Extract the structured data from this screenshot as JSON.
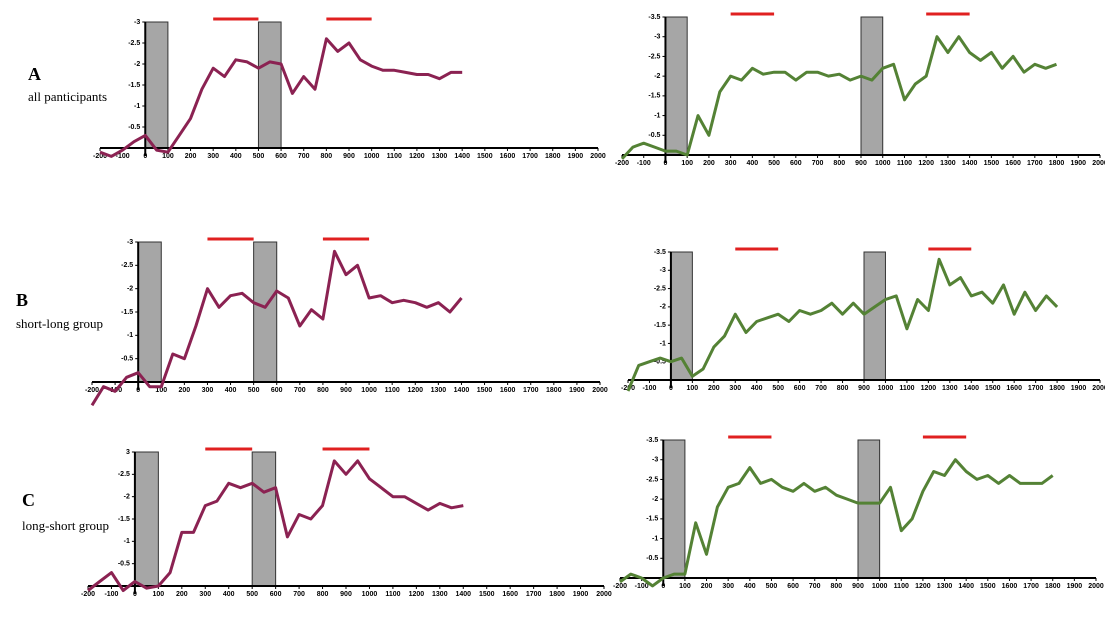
{
  "rows": [
    {
      "letter": "A",
      "label": "all panticipants"
    },
    {
      "letter": "B",
      "label": "short-long group"
    },
    {
      "letter": "C",
      "label": "long-short group"
    }
  ],
  "chart_data": [
    {
      "type": "line",
      "x": [
        -200,
        -150,
        -100,
        -50,
        0,
        50,
        100,
        150,
        200,
        250,
        300,
        350,
        400,
        450,
        500,
        550,
        600,
        650,
        700,
        750,
        800,
        850,
        900,
        950,
        1000,
        1050,
        1100,
        1150,
        1200,
        1250,
        1300,
        1350,
        1400
      ],
      "series": [
        {
          "color": "#8b2252",
          "values": [
            0.1,
            0.2,
            0.05,
            -0.15,
            -0.3,
            0.05,
            0.1,
            -0.3,
            -0.7,
            -1.4,
            -1.9,
            -1.7,
            -2.1,
            -2.05,
            -1.9,
            -2.05,
            -2.0,
            -1.3,
            -1.7,
            -1.4,
            -2.6,
            -2.3,
            -2.5,
            -2.1,
            -1.95,
            -1.85,
            -1.85,
            -1.8,
            -1.75,
            -1.75,
            -1.65,
            -1.8,
            -1.8
          ]
        }
      ],
      "xlim": [
        -200,
        2000
      ],
      "xticks": [
        -200,
        -100,
        0,
        100,
        200,
        300,
        400,
        500,
        600,
        700,
        800,
        900,
        1000,
        1100,
        1200,
        1300,
        1400,
        1500,
        1600,
        1700,
        1800,
        1900,
        2000
      ],
      "ylim": [
        0,
        -3
      ],
      "yticks": [
        -0.5,
        -1,
        -1.5,
        -2,
        -2.5,
        -3
      ],
      "shaded": [
        [
          0,
          100
        ],
        [
          500,
          600
        ]
      ],
      "windows": [
        [
          300,
          500
        ],
        [
          800,
          1000
        ]
      ]
    },
    {
      "type": "line",
      "x": [
        -200,
        -150,
        -100,
        -50,
        0,
        50,
        100,
        150,
        200,
        250,
        300,
        350,
        400,
        450,
        500,
        550,
        600,
        650,
        700,
        750,
        800,
        850,
        900,
        950,
        1000,
        1050,
        1100,
        1150,
        1200,
        1250,
        1300,
        1350,
        1400,
        1450,
        1500,
        1550,
        1600,
        1650,
        1700,
        1750,
        1800
      ],
      "series": [
        {
          "color": "#548235",
          "values": [
            0.1,
            -0.2,
            -0.3,
            -0.2,
            -0.1,
            -0.1,
            0.0,
            -1.0,
            -0.5,
            -1.6,
            -2.0,
            -1.9,
            -2.2,
            -2.05,
            -2.1,
            -2.1,
            -1.9,
            -2.1,
            -2.1,
            -2.0,
            -2.05,
            -1.9,
            -2.0,
            -1.9,
            -2.2,
            -2.3,
            -1.4,
            -1.8,
            -2.0,
            -3.0,
            -2.6,
            -3.0,
            -2.6,
            -2.4,
            -2.6,
            -2.2,
            -2.5,
            -2.1,
            -2.3,
            -2.2,
            -2.3
          ]
        }
      ],
      "xlim": [
        -200,
        2000
      ],
      "xticks": [
        -200,
        -100,
        0,
        100,
        200,
        300,
        400,
        500,
        600,
        700,
        800,
        900,
        1000,
        1100,
        1200,
        1300,
        1400,
        1500,
        1600,
        1700,
        1800,
        1900,
        2000
      ],
      "ylim": [
        0,
        -3.5
      ],
      "yticks": [
        -0.5,
        -1,
        -1.5,
        -2,
        -2.5,
        -3,
        -3.5
      ],
      "shaded": [
        [
          0,
          100
        ],
        [
          900,
          1000
        ]
      ],
      "windows": [
        [
          300,
          500
        ],
        [
          1200,
          1400
        ]
      ]
    },
    {
      "type": "line",
      "x": [
        -200,
        -150,
        -100,
        -50,
        0,
        50,
        100,
        150,
        200,
        250,
        300,
        350,
        400,
        450,
        500,
        550,
        600,
        650,
        700,
        750,
        800,
        850,
        900,
        950,
        1000,
        1050,
        1100,
        1150,
        1200,
        1250,
        1300,
        1350,
        1400
      ],
      "series": [
        {
          "color": "#8b2252",
          "values": [
            0.5,
            0.1,
            0.2,
            -0.1,
            -0.2,
            0.1,
            0.1,
            -0.6,
            -0.5,
            -1.2,
            -2.0,
            -1.6,
            -1.85,
            -1.9,
            -1.7,
            -1.6,
            -1.95,
            -1.8,
            -1.2,
            -1.55,
            -1.35,
            -2.8,
            -2.3,
            -2.5,
            -1.8,
            -1.85,
            -1.7,
            -1.75,
            -1.7,
            -1.6,
            -1.7,
            -1.5,
            -1.8
          ]
        }
      ],
      "xlim": [
        -200,
        2000
      ],
      "xticks": [
        -200,
        -100,
        0,
        100,
        200,
        300,
        400,
        500,
        600,
        700,
        800,
        900,
        1000,
        1100,
        1200,
        1300,
        1400,
        1500,
        1600,
        1700,
        1800,
        1900,
        2000
      ],
      "ylim": [
        0,
        -3
      ],
      "yticks": [
        -0.5,
        -1,
        -1.5,
        -2,
        -2.5,
        -3
      ],
      "shaded": [
        [
          0,
          100
        ],
        [
          500,
          600
        ]
      ],
      "windows": [
        [
          300,
          500
        ],
        [
          800,
          1000
        ]
      ]
    },
    {
      "type": "line",
      "x": [
        -200,
        -150,
        -100,
        -50,
        0,
        50,
        100,
        150,
        200,
        250,
        300,
        350,
        400,
        450,
        500,
        550,
        600,
        650,
        700,
        750,
        800,
        850,
        900,
        950,
        1000,
        1050,
        1100,
        1150,
        1200,
        1250,
        1300,
        1350,
        1400,
        1450,
        1500,
        1550,
        1600,
        1650,
        1700,
        1750,
        1800
      ],
      "series": [
        {
          "color": "#548235",
          "values": [
            0.3,
            -0.4,
            -0.5,
            -0.6,
            -0.5,
            -0.6,
            -0.1,
            -0.3,
            -0.9,
            -1.2,
            -1.8,
            -1.3,
            -1.6,
            -1.7,
            -1.8,
            -1.6,
            -1.9,
            -1.8,
            -1.9,
            -2.1,
            -1.8,
            -2.1,
            -1.8,
            -2.0,
            -2.2,
            -2.3,
            -1.4,
            -2.2,
            -1.9,
            -3.3,
            -2.6,
            -2.8,
            -2.3,
            -2.4,
            -2.1,
            -2.6,
            -1.8,
            -2.4,
            -1.9,
            -2.3,
            -2.0
          ]
        }
      ],
      "xlim": [
        -200,
        2000
      ],
      "xticks": [
        -200,
        -100,
        0,
        100,
        200,
        300,
        400,
        500,
        600,
        700,
        800,
        900,
        1000,
        1100,
        1200,
        1300,
        1400,
        1500,
        1600,
        1700,
        1800,
        1900,
        2000
      ],
      "ylim": [
        0,
        -3.5
      ],
      "yticks": [
        -0.5,
        -1,
        -1.5,
        -2,
        -2.5,
        -3,
        -3.5
      ],
      "shaded": [
        [
          0,
          100
        ],
        [
          900,
          1000
        ]
      ],
      "windows": [
        [
          300,
          500
        ],
        [
          1200,
          1400
        ]
      ]
    },
    {
      "type": "line",
      "x": [
        -200,
        -150,
        -100,
        -50,
        0,
        50,
        100,
        150,
        200,
        250,
        300,
        350,
        400,
        450,
        500,
        550,
        600,
        650,
        700,
        750,
        800,
        850,
        900,
        950,
        1000,
        1050,
        1100,
        1150,
        1200,
        1250,
        1300,
        1350,
        1400
      ],
      "series": [
        {
          "color": "#8b2252",
          "values": [
            0.1,
            -0.1,
            -0.3,
            0.1,
            -0.1,
            0.05,
            0.0,
            -0.3,
            -1.2,
            -1.2,
            -1.8,
            -1.9,
            -2.3,
            -2.2,
            -2.3,
            -2.1,
            -2.2,
            -1.1,
            -1.6,
            -1.5,
            -1.8,
            -2.8,
            -2.5,
            -2.8,
            -2.4,
            -2.2,
            -2.0,
            -2.0,
            -1.85,
            -1.7,
            -1.85,
            -1.75,
            -1.8
          ]
        }
      ],
      "xlim": [
        -200,
        2000
      ],
      "xticks": [
        -200,
        -100,
        0,
        100,
        200,
        300,
        400,
        500,
        600,
        700,
        800,
        900,
        1000,
        1100,
        1200,
        1300,
        1400,
        1500,
        1600,
        1700,
        1800,
        1900,
        2000
      ],
      "ylim": [
        0,
        -3
      ],
      "yticks": [
        -0.5,
        -1,
        -1.5,
        -2,
        -2.5,
        {
          "value": -3,
          "label": "3"
        }
      ],
      "shaded": [
        [
          0,
          100
        ],
        [
          500,
          600
        ]
      ],
      "windows": [
        [
          300,
          500
        ],
        [
          800,
          1000
        ]
      ]
    },
    {
      "type": "line",
      "x": [
        -200,
        -150,
        -100,
        -50,
        0,
        50,
        100,
        150,
        200,
        250,
        300,
        350,
        400,
        450,
        500,
        550,
        600,
        650,
        700,
        750,
        800,
        850,
        900,
        950,
        1000,
        1050,
        1100,
        1150,
        1200,
        1250,
        1300,
        1350,
        1400,
        1450,
        1500,
        1550,
        1600,
        1650,
        1700,
        1750,
        1800
      ],
      "series": [
        {
          "color": "#548235",
          "values": [
            0.1,
            -0.1,
            0.0,
            0.2,
            0.0,
            -0.1,
            -0.1,
            -1.4,
            -0.6,
            -1.8,
            -2.3,
            -2.4,
            -2.8,
            -2.4,
            -2.5,
            -2.3,
            -2.2,
            -2.4,
            -2.2,
            -2.3,
            -2.1,
            -2.0,
            -1.9,
            -1.9,
            -1.9,
            -2.3,
            -1.2,
            -1.5,
            -2.2,
            -2.7,
            -2.6,
            -3.0,
            -2.7,
            -2.5,
            -2.6,
            -2.4,
            -2.6,
            -2.4,
            -2.4,
            -2.4,
            -2.6
          ]
        }
      ],
      "xlim": [
        -200,
        2000
      ],
      "xticks": [
        -200,
        -100,
        0,
        100,
        200,
        300,
        400,
        500,
        600,
        700,
        800,
        900,
        1000,
        1100,
        1200,
        1300,
        1400,
        1500,
        1600,
        1700,
        1800,
        1900,
        2000
      ],
      "ylim": [
        0,
        -3.5
      ],
      "yticks": [
        -0.5,
        -1,
        -1.5,
        -2,
        -2.5,
        -3,
        -3.5
      ],
      "shaded": [
        [
          0,
          100
        ],
        [
          900,
          1000
        ]
      ],
      "windows": [
        [
          300,
          500
        ],
        [
          1200,
          1400
        ]
      ]
    }
  ]
}
